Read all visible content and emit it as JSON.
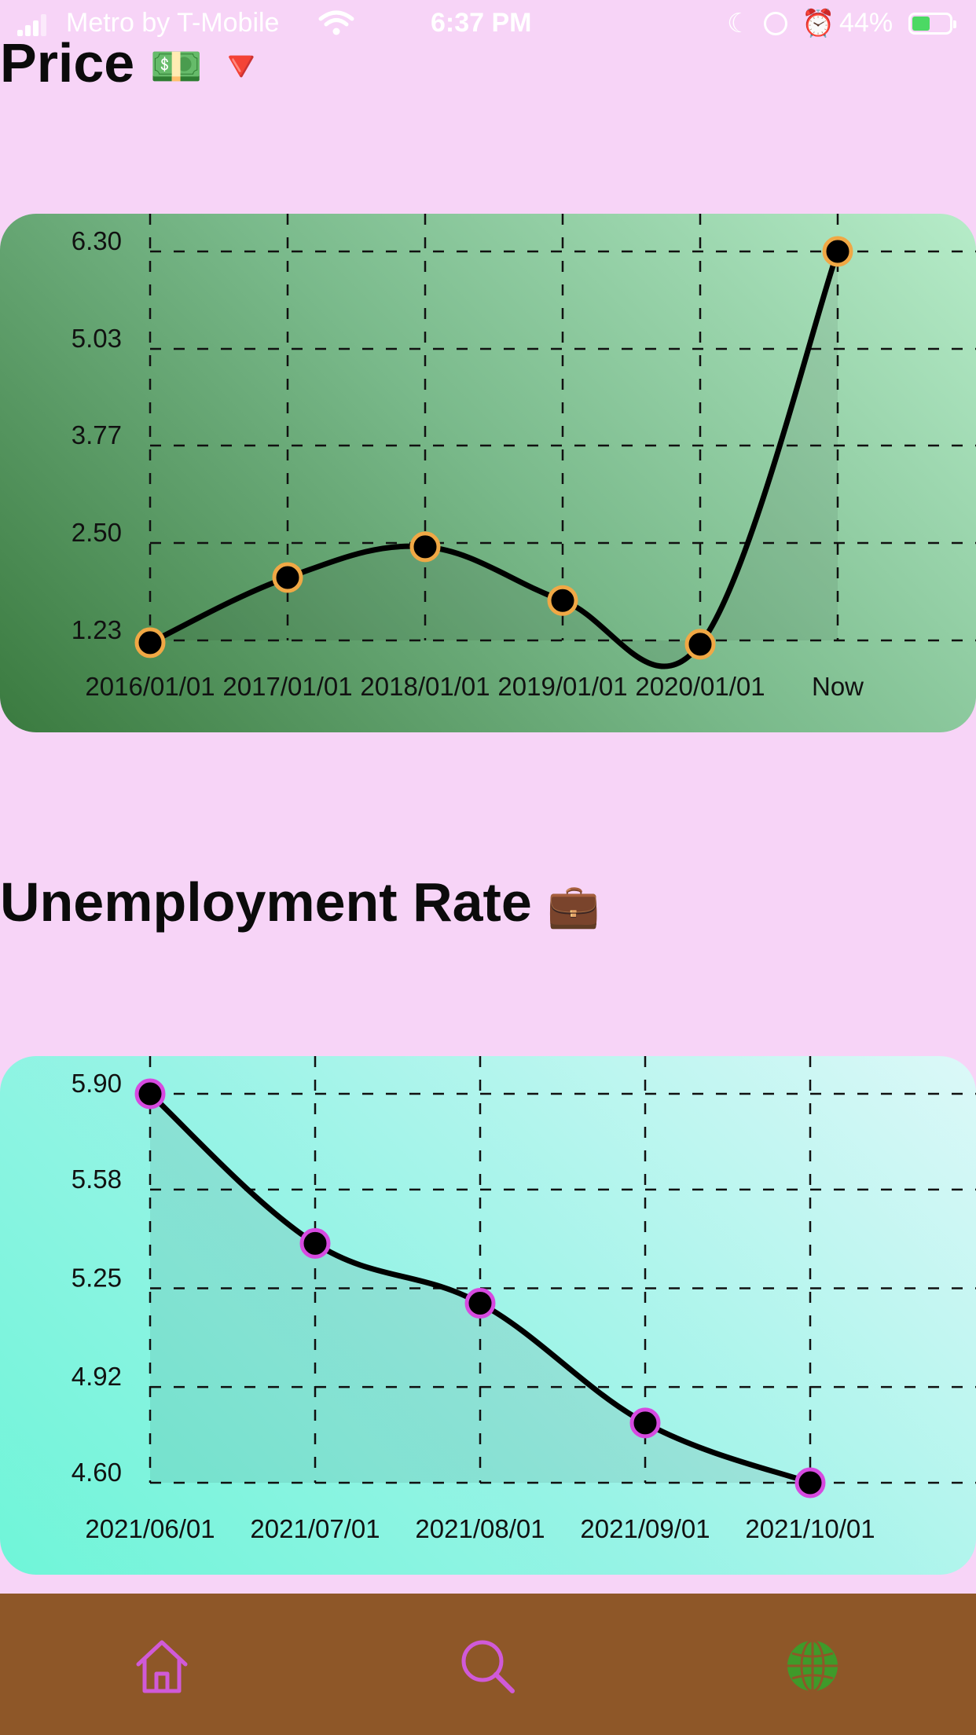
{
  "status_bar": {
    "carrier": "Metro by T-Mobile",
    "time": "6:37 PM",
    "battery": "44%",
    "icons": [
      "signal-icon",
      "wifi-icon",
      "moon-icon",
      "orientation-lock-icon",
      "alarm-icon",
      "battery-icon"
    ]
  },
  "price_section": {
    "title": "Price",
    "emojis": "💵 🔻"
  },
  "unemployment_section": {
    "title": "Unemployment Rate",
    "emoji": "💼"
  },
  "tab_bar": {
    "tabs": [
      {
        "icon": "home-icon",
        "color": "#d05ad8"
      },
      {
        "icon": "search-icon",
        "color": "#d05ad8"
      },
      {
        "icon": "globe-icon",
        "color": "#3f9a2a"
      }
    ]
  },
  "colors": {
    "background": "#f7d4f7",
    "tab_bar": "#8e5728",
    "price_marker_ring": "#f0a845",
    "unemployment_marker_ring": "#d64ae0",
    "line": "#000000"
  },
  "chart_data": [
    {
      "type": "line",
      "title": "",
      "categories": [
        "2016/01/01",
        "2017/01/01",
        "2018/01/01",
        "2019/01/01",
        "2020/01/01",
        "Now"
      ],
      "values": [
        1.2,
        2.05,
        2.45,
        1.75,
        1.18,
        6.3
      ],
      "y_ticks": [
        "1.23",
        "2.50",
        "3.77",
        "5.03",
        "6.30"
      ],
      "ylim": [
        1.23,
        6.3
      ],
      "grid": true,
      "xlabel": "",
      "ylabel": ""
    },
    {
      "type": "line",
      "title": "",
      "categories": [
        "2021/06/01",
        "2021/07/01",
        "2021/08/01",
        "2021/09/01",
        "2021/10/01"
      ],
      "values": [
        5.9,
        5.4,
        5.2,
        4.8,
        4.6
      ],
      "y_ticks": [
        "4.60",
        "4.92",
        "5.25",
        "5.58",
        "5.90"
      ],
      "ylim": [
        4.6,
        5.9
      ],
      "grid": true,
      "xlabel": "",
      "ylabel": ""
    }
  ]
}
